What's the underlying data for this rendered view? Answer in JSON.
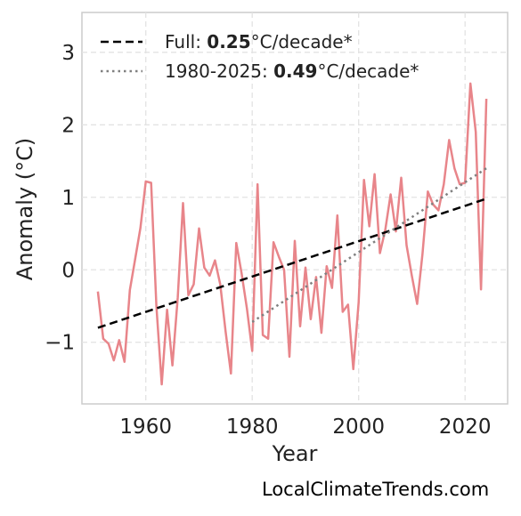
{
  "chart_data": {
    "type": "line",
    "xlabel": "Year",
    "ylabel": "Anomaly (°C)",
    "xlim": [
      1948,
      2028
    ],
    "ylim": [
      -1.85,
      3.55
    ],
    "x_ticks": [
      1960,
      1980,
      2000,
      2020
    ],
    "y_ticks": [
      -1,
      0,
      1,
      2,
      3
    ],
    "y_tick_labels": [
      "−1",
      "0",
      "1",
      "2",
      "3"
    ],
    "grid": true,
    "legend_position": "top-left",
    "series": [
      {
        "x": [
          1951,
          1952,
          1953,
          1954,
          1955,
          1956,
          1957,
          1958,
          1959,
          1960,
          1961,
          1962,
          1963,
          1964,
          1965,
          1966,
          1967,
          1968,
          1969,
          1970,
          1971,
          1972,
          1973,
          1974,
          1975,
          1976,
          1977,
          1978,
          1979,
          1980,
          1981,
          1982,
          1983,
          1984,
          1985,
          1986,
          1987,
          1988,
          1989,
          1990,
          1991,
          1992,
          1993,
          1994,
          1995,
          1996,
          1997,
          1998,
          1999,
          2000,
          2001,
          2002,
          2003,
          2004,
          2005,
          2006,
          2007,
          2008,
          2009,
          2010,
          2011,
          2012,
          2013,
          2014,
          2015,
          2016,
          2017,
          2018,
          2019,
          2020,
          2021,
          2022,
          2023,
          2024
        ],
        "y": [
          -0.3,
          -0.95,
          -1.02,
          -1.25,
          -0.97,
          -1.27,
          -0.28,
          0.15,
          0.58,
          1.22,
          1.2,
          -0.5,
          -1.58,
          -0.55,
          -1.32,
          -0.38,
          0.92,
          -0.35,
          -0.2,
          0.57,
          0.03,
          -0.08,
          0.13,
          -0.2,
          -0.85,
          -1.43,
          0.37,
          -0.05,
          -0.53,
          -1.12,
          1.18,
          -0.9,
          -0.95,
          0.38,
          0.18,
          0.0,
          -1.2,
          0.4,
          -0.78,
          0.03,
          -0.68,
          -0.1,
          -0.87,
          0.05,
          -0.25,
          0.75,
          -0.58,
          -0.48,
          -1.37,
          -0.45,
          1.24,
          0.6,
          1.32,
          0.23,
          0.55,
          1.04,
          0.53,
          1.27,
          0.34,
          -0.08,
          -0.47,
          0.22,
          1.08,
          0.9,
          0.82,
          1.18,
          1.79,
          1.4,
          1.18,
          1.2,
          2.57,
          1.9,
          -0.27,
          2.36
        ],
        "color": "#e8858a"
      }
    ],
    "trends": [
      {
        "label_prefix": "Full: ",
        "rate": "0.25",
        "label_suffix": "°C/decade*",
        "x": [
          1951,
          2024
        ],
        "y": [
          -0.8,
          0.98
        ],
        "color": "#000000",
        "style": "dashed"
      },
      {
        "label_prefix": "1980-2025: ",
        "rate": "0.49",
        "label_suffix": "°C/decade*",
        "x": [
          1980,
          2024
        ],
        "y": [
          -0.72,
          1.4
        ],
        "color": "#808080",
        "style": "dotted"
      }
    ]
  },
  "credit": "LocalClimateTrends.com"
}
